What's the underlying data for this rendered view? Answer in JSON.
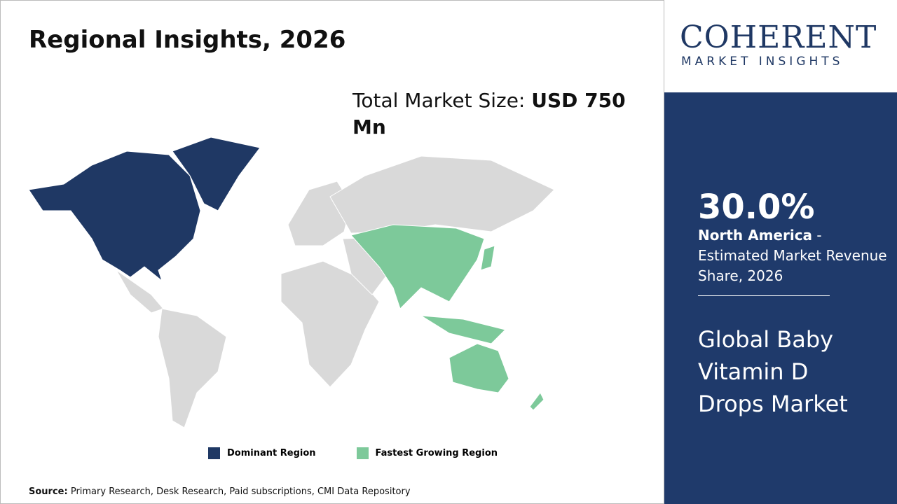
{
  "title": "Regional Insights, 2026",
  "market_size": {
    "label": "Total Market Size:",
    "value": "USD 750 Mn"
  },
  "legend": [
    {
      "label": "Dominant Region",
      "color": "#1f3864"
    },
    {
      "label": "Fastest Growing Region",
      "color": "#7dc99a"
    }
  ],
  "source": {
    "label": "Source:",
    "text": "Primary Research, Desk Research, Paid subscriptions, CMI Data Repository"
  },
  "logo": {
    "name": "COHERENT",
    "tagline": "MARKET INSIGHTS"
  },
  "sidebar": {
    "share": "30.0%",
    "region": "North America",
    "description": " - Estimated Market Revenue Share, 2026",
    "market": "Global Baby Vitamin D Drops Market"
  }
}
